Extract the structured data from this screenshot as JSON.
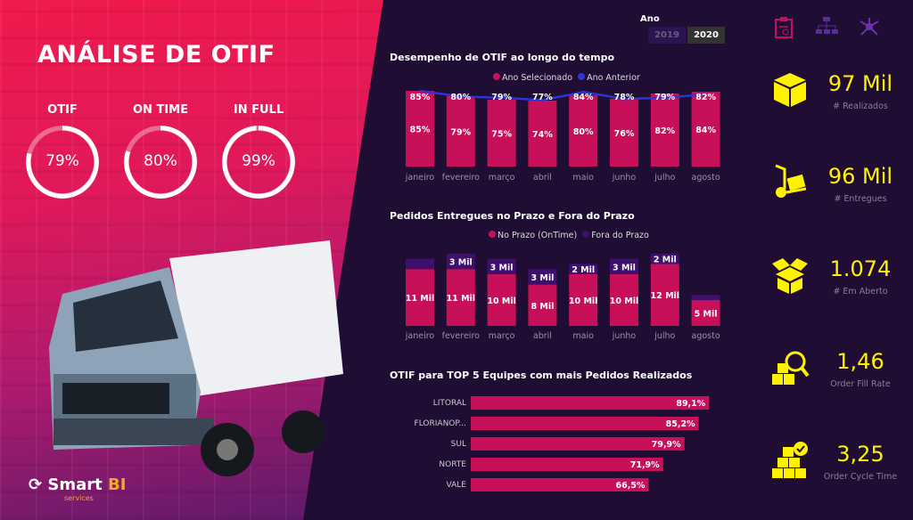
{
  "header": {
    "title": "ANÁLISE DE OTIF",
    "logo": "Smart BI services"
  },
  "gauges": [
    {
      "label": "OTIF",
      "value": "79%",
      "pct": 79
    },
    {
      "label": "ON TIME",
      "value": "80%",
      "pct": 80
    },
    {
      "label": "IN FULL",
      "value": "99%",
      "pct": 99
    }
  ],
  "year_filter": {
    "label": "Ano",
    "options": [
      "2019",
      "2020"
    ],
    "selected": "2020"
  },
  "chart_data": [
    {
      "type": "bar",
      "title": "Desempenho de OTIF ao longo do tempo",
      "categories": [
        "janeiro",
        "fevereiro",
        "março",
        "abril",
        "maio",
        "junho",
        "julho",
        "agosto"
      ],
      "series": [
        {
          "name": "Ano Selecionado",
          "type": "bar",
          "values": [
            85,
            79,
            75,
            74,
            80,
            76,
            82,
            84
          ],
          "labels": [
            "85%",
            "79%",
            "75%",
            "74%",
            "80%",
            "76%",
            "82%",
            "84%"
          ]
        },
        {
          "name": "Ano Anterior",
          "type": "line",
          "values": [
            85,
            80,
            79,
            77,
            84,
            78,
            79,
            82
          ],
          "labels": [
            "85%",
            "80%",
            "79%",
            "77%",
            "84%",
            "78%",
            "79%",
            "82%"
          ]
        }
      ],
      "colors": [
        "#c8105a",
        "#2b35d6"
      ]
    },
    {
      "type": "bar",
      "stacked": true,
      "title": "Pedidos Entregues no Prazo e Fora do Prazo",
      "categories": [
        "janeiro",
        "fevereiro",
        "março",
        "abril",
        "maio",
        "junho",
        "julho",
        "agosto"
      ],
      "series": [
        {
          "name": "No Prazo (OnTime)",
          "values": [
            11,
            11,
            10,
            8,
            10,
            10,
            12,
            5
          ],
          "labels": [
            "11 Mil",
            "11 Mil",
            "10 Mil",
            "8 Mil",
            "10 Mil",
            "10 Mil",
            "12 Mil",
            "5 Mil"
          ]
        },
        {
          "name": "Fora do Prazo",
          "values": [
            2,
            3,
            3,
            3,
            2,
            3,
            2,
            1
          ],
          "labels": [
            "",
            "3 Mil",
            "3 Mil",
            "3 Mil",
            "2 Mil",
            "3 Mil",
            "2 Mil",
            ""
          ]
        }
      ],
      "colors": [
        "#c8105a",
        "#3e0f6e"
      ]
    },
    {
      "type": "bar",
      "orientation": "horizontal",
      "title": "OTIF para TOP 5 Equipes com mais Pedidos Realizados",
      "categories": [
        "LITORAL",
        "FLORIANOP...",
        "SUL",
        "NORTE",
        "VALE"
      ],
      "values": [
        89.1,
        85.2,
        79.9,
        71.9,
        66.5
      ],
      "labels": [
        "89,1%",
        "85,2%",
        "79,9%",
        "71,9%",
        "66,5%"
      ],
      "color": "#c8105a"
    }
  ],
  "kpis": [
    {
      "value": "97 Mil",
      "label": "# Realizados",
      "icon": "box-icon"
    },
    {
      "value": "96 Mil",
      "label": "# Entregues",
      "icon": "hand-truck-icon"
    },
    {
      "value": "1.074",
      "label": "# Em Aberto",
      "icon": "open-box-icon"
    },
    {
      "value": "1,46",
      "label": "Order Fill Rate",
      "icon": "boxes-search-icon"
    },
    {
      "value": "3,25",
      "label": "Order Cycle Time",
      "icon": "boxes-check-icon"
    }
  ],
  "nav_icons": [
    "clipboard-icon",
    "hierarchy-icon",
    "network-icon"
  ]
}
